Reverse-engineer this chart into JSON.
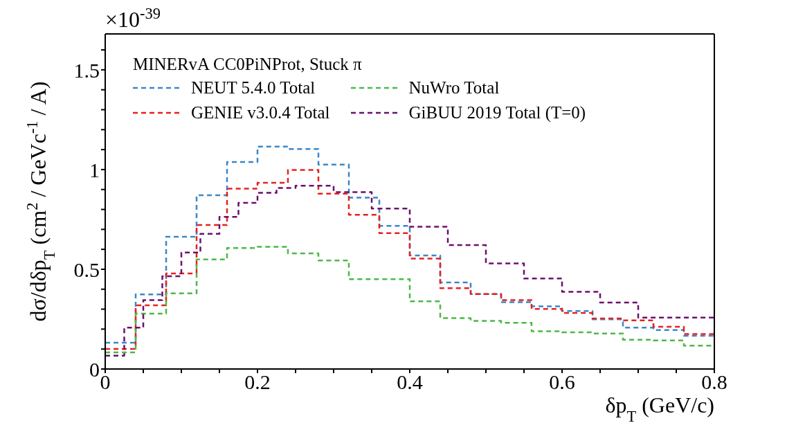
{
  "chart_data": {
    "type": "step",
    "xlabel": "δp$_{T}$ (GeV/c)",
    "ylabel": "dσ/dδp$_{T}$ (cm$^{2}$ / GeVc$^{-1}$ / A)",
    "annotations": [
      "×10$^{-39}$"
    ],
    "legend_title": "MINERvA CC0PiNProt, Stuck π",
    "legend": "top left",
    "line_style": "dashed",
    "marker": "none",
    "grid": false,
    "xlim": [
      0,
      0.8
    ],
    "xticks": [
      0,
      {
        "value": 0.05,
        "label": null
      },
      {
        "value": 0.1,
        "label": null
      },
      {
        "value": 0.15,
        "label": null
      },
      0.2,
      {
        "value": 0.25,
        "label": null
      },
      {
        "value": 0.3,
        "label": null
      },
      {
        "value": 0.35,
        "label": null
      },
      0.4,
      {
        "value": 0.45,
        "label": null
      },
      {
        "value": 0.5,
        "label": null
      },
      {
        "value": 0.55,
        "label": null
      },
      0.6,
      {
        "value": 0.65,
        "label": null
      },
      {
        "value": 0.7,
        "label": null
      },
      {
        "value": 0.75,
        "label": null
      },
      0.8
    ],
    "ylim": [
      0,
      1.68
    ],
    "yticks": [
      0,
      {
        "value": 0.1,
        "label": null
      },
      {
        "value": 0.2,
        "label": null
      },
      {
        "value": 0.3,
        "label": null
      },
      {
        "value": 0.4,
        "label": null
      },
      0.5,
      {
        "value": 0.6,
        "label": null
      },
      {
        "value": 0.7,
        "label": null
      },
      {
        "value": 0.8,
        "label": null
      },
      {
        "value": 0.9,
        "label": null
      },
      1,
      {
        "value": 1.1,
        "label": null
      },
      {
        "value": 1.2,
        "label": null
      },
      {
        "value": 1.3,
        "label": null
      },
      {
        "value": 1.4,
        "label": null
      },
      1.5,
      {
        "value": 1.6,
        "label": null
      }
    ],
    "series": [
      {
        "name": "NEUT 5.4.0 Total",
        "color": "#3a87c8",
        "x": [
          0,
          0.04,
          0.08,
          0.12,
          0.16,
          0.2,
          0.24,
          0.28,
          0.32,
          0.36,
          0.4,
          0.44,
          0.48,
          0.52,
          0.56,
          0.6,
          0.64,
          0.68,
          0.72,
          0.76,
          0.8
        ],
        "values": [
          0.132,
          0.374,
          0.663,
          0.871,
          1.038,
          1.115,
          1.103,
          1.025,
          0.859,
          0.718,
          0.569,
          0.434,
          0.376,
          0.335,
          0.314,
          0.291,
          0.249,
          0.207,
          0.195,
          0.167,
          0.167
        ]
      },
      {
        "name": "GENIE v3.0.4 Total",
        "color": "#e8211d",
        "x": [
          0,
          0.04,
          0.08,
          0.12,
          0.16,
          0.2,
          0.24,
          0.28,
          0.32,
          0.36,
          0.4,
          0.44,
          0.48,
          0.52,
          0.56,
          0.6,
          0.64,
          0.68,
          0.72,
          0.76,
          0.8
        ],
        "values": [
          0.101,
          0.319,
          0.479,
          0.722,
          0.904,
          0.934,
          0.998,
          0.879,
          0.773,
          0.681,
          0.554,
          0.405,
          0.376,
          0.345,
          0.301,
          0.281,
          0.253,
          0.244,
          0.212,
          0.175,
          0.175
        ]
      },
      {
        "name": "NuWro Total",
        "color": "#4db848",
        "x": [
          0,
          0.04,
          0.08,
          0.12,
          0.16,
          0.2,
          0.24,
          0.28,
          0.32,
          0.36,
          0.4,
          0.44,
          0.48,
          0.52,
          0.56,
          0.6,
          0.64,
          0.68,
          0.72,
          0.76,
          0.8
        ],
        "values": [
          0.083,
          0.278,
          0.379,
          0.549,
          0.607,
          0.613,
          0.58,
          0.544,
          0.45,
          0.45,
          0.339,
          0.255,
          0.241,
          0.232,
          0.189,
          0.184,
          0.178,
          0.147,
          0.143,
          0.117,
          0.117
        ]
      },
      {
        "name": "GiBUU 2019 Total (T=0)",
        "color": "#6d0f6d",
        "x": [
          0,
          0.025,
          0.05,
          0.075,
          0.1,
          0.125,
          0.15,
          0.175,
          0.2,
          0.225,
          0.25,
          0.3,
          0.35,
          0.4,
          0.45,
          0.5,
          0.55,
          0.6,
          0.65,
          0.7,
          0.8
        ],
        "values": [
          0.067,
          0.207,
          0.345,
          0.465,
          0.584,
          0.678,
          0.763,
          0.833,
          0.883,
          0.908,
          0.919,
          0.887,
          0.804,
          0.713,
          0.621,
          0.529,
          0.454,
          0.387,
          0.333,
          0.258,
          0.258
        ]
      }
    ]
  }
}
